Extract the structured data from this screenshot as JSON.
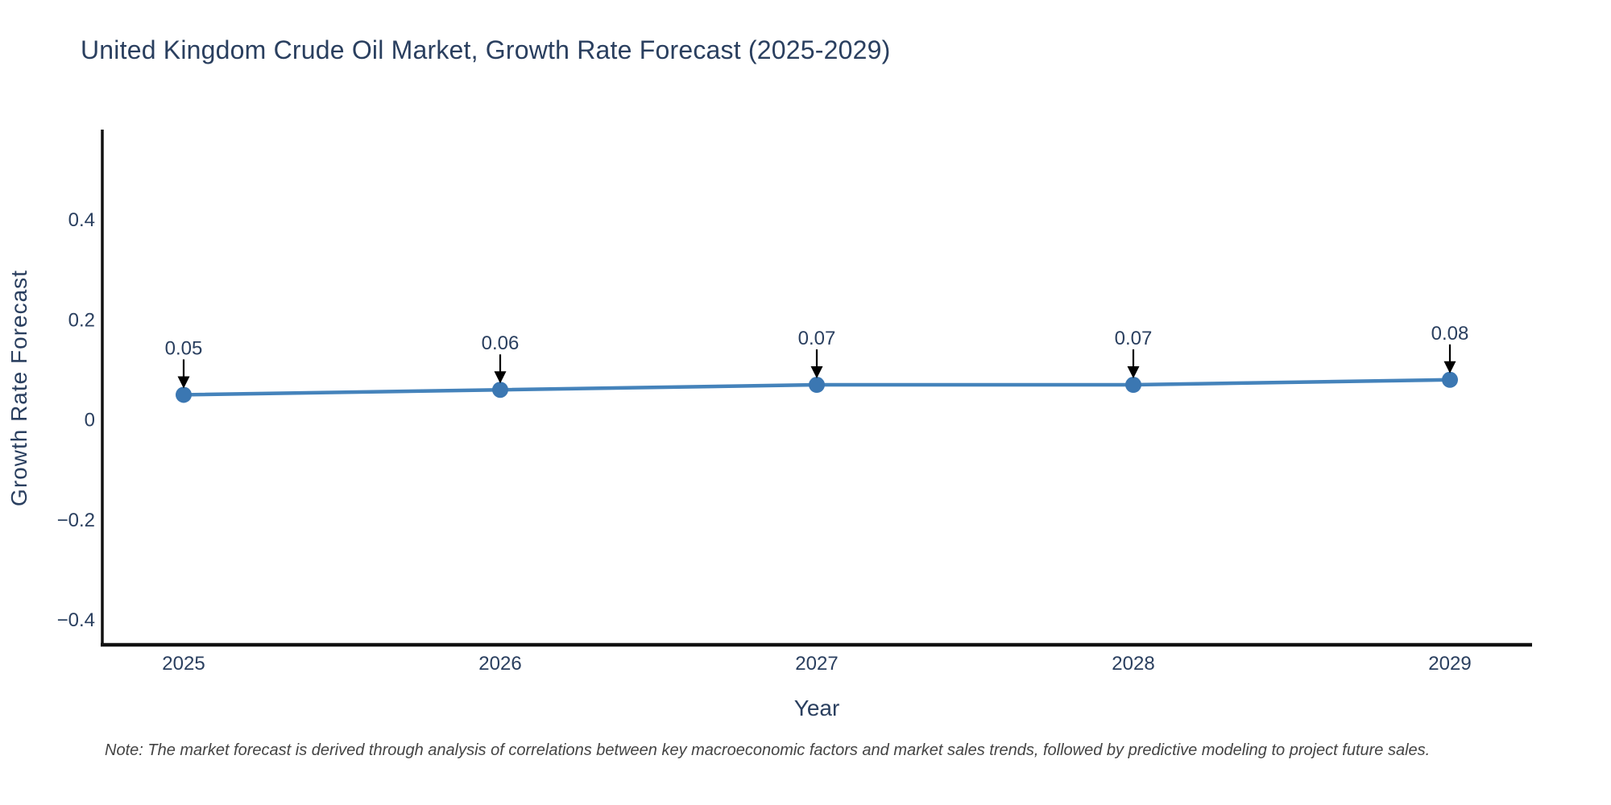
{
  "title": "United Kingdom Crude Oil Market, Growth Rate Forecast (2025-2029)",
  "note": "Note: The market forecast is derived through analysis of correlations between key macroeconomic factors and market sales trends, followed by predictive modeling to project future sales.",
  "chart_data": {
    "type": "line",
    "title": "United Kingdom Crude Oil Market, Growth Rate Forecast (2025-2029)",
    "xlabel": "Year",
    "ylabel": "Growth Rate Forecast",
    "x": [
      2025,
      2026,
      2027,
      2028,
      2029
    ],
    "series": [
      {
        "name": "Growth Rate Forecast",
        "values": [
          0.05,
          0.06,
          0.07,
          0.07,
          0.08
        ]
      }
    ],
    "point_labels": [
      "0.05",
      "0.06",
      "0.07",
      "0.07",
      "0.08"
    ],
    "xtick_labels": [
      "2025",
      "2026",
      "2027",
      "2028",
      "2029"
    ],
    "ytick_values": [
      0.4,
      0.2,
      0,
      -0.2,
      -0.4
    ],
    "ytick_labels": [
      "0.4",
      "0.2",
      "0",
      "−0.2",
      "−0.4"
    ],
    "ylim": [
      -0.45,
      0.58
    ],
    "grid": false,
    "legend": false,
    "annotations_arrow": "down-arrow",
    "colors": {
      "line": "#4583bb",
      "marker": "#3b77b2",
      "axis": "#111111",
      "text": "#2a3f5f",
      "arrow": "#000000",
      "note": "#444444",
      "background": "#ffffff"
    }
  }
}
